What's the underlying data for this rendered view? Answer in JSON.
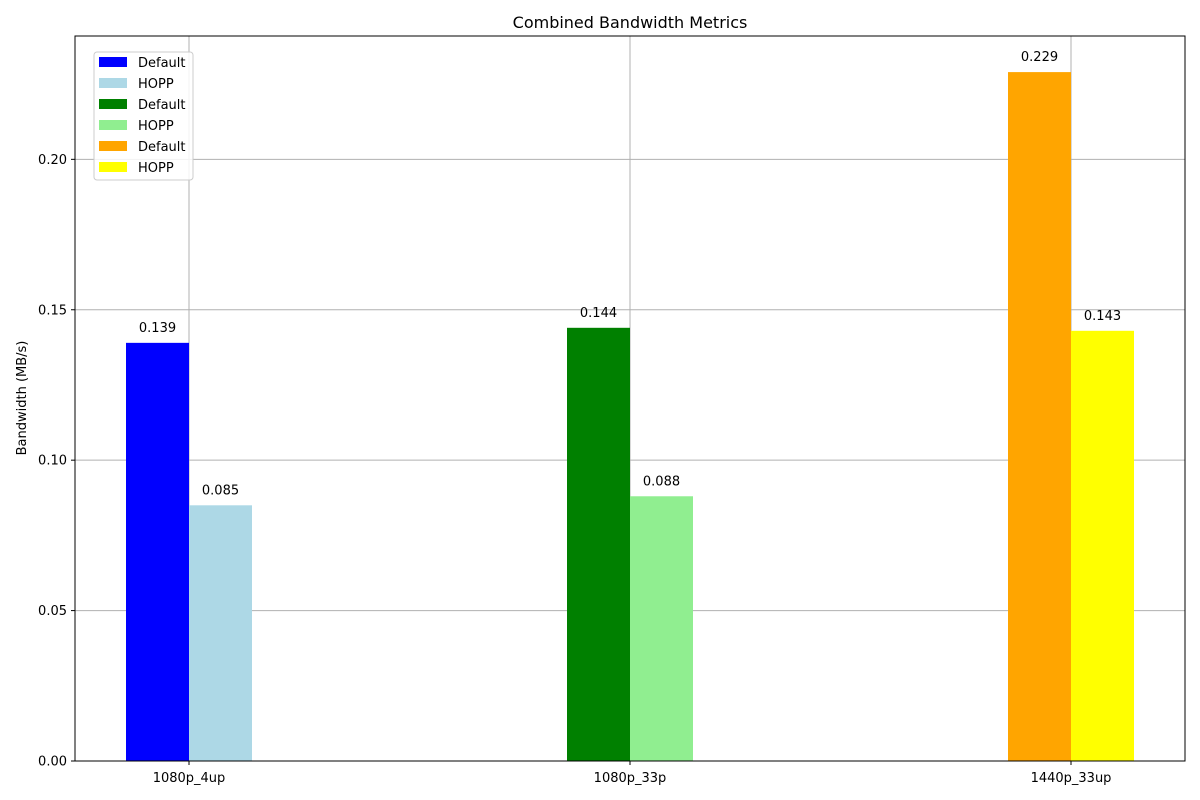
{
  "chart_data": {
    "type": "bar",
    "title": "Combined Bandwidth Metrics",
    "xlabel": "",
    "ylabel": "Bandwidth (MB/s)",
    "ylim": [
      0,
      0.241
    ],
    "yticks": [
      0.0,
      0.05,
      0.1,
      0.15,
      0.2
    ],
    "ytick_labels": [
      "0.00",
      "0.05",
      "0.10",
      "0.15",
      "0.20"
    ],
    "grid": true,
    "legend_position": "top-left",
    "categories": [
      "1080p_4up",
      "1080p_33p",
      "1440p_33up"
    ],
    "groups": [
      {
        "category": "1080p_4up",
        "bars": [
          {
            "series": "Default",
            "value": 0.139,
            "label": "0.139",
            "color": "#0000ff"
          },
          {
            "series": "HOPP",
            "value": 0.085,
            "label": "0.085",
            "color": "#add8e6"
          }
        ]
      },
      {
        "category": "1080p_33p",
        "bars": [
          {
            "series": "Default",
            "value": 0.144,
            "label": "0.144",
            "color": "#008000"
          },
          {
            "series": "HOPP",
            "value": 0.088,
            "label": "0.088",
            "color": "#90ee90"
          }
        ]
      },
      {
        "category": "1440p_33up",
        "bars": [
          {
            "series": "Default",
            "value": 0.229,
            "label": "0.229",
            "color": "#ffa500"
          },
          {
            "series": "HOPP",
            "value": 0.143,
            "label": "0.143",
            "color": "#ffff00"
          }
        ]
      }
    ],
    "legend": [
      {
        "label": "Default",
        "color": "#0000ff"
      },
      {
        "label": "HOPP",
        "color": "#add8e6"
      },
      {
        "label": "Default",
        "color": "#008000"
      },
      {
        "label": "HOPP",
        "color": "#90ee90"
      },
      {
        "label": "Default",
        "color": "#ffa500"
      },
      {
        "label": "HOPP",
        "color": "#ffff00"
      }
    ]
  }
}
